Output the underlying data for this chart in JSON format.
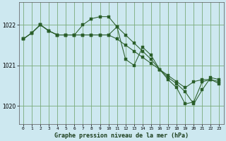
{
  "title": "Graphe pression niveau de la mer (hPa)",
  "bg_color": "#cde8f0",
  "grid_color": "#7aab7a",
  "line_color": "#2a5e2a",
  "xlim": [
    -0.5,
    23.5
  ],
  "ylim": [
    1019.55,
    1022.55
  ],
  "yticks": [
    1020,
    1021,
    1022
  ],
  "xticks": [
    0,
    1,
    2,
    3,
    4,
    5,
    6,
    7,
    8,
    9,
    10,
    11,
    12,
    13,
    14,
    15,
    16,
    17,
    18,
    19,
    20,
    21,
    22,
    23
  ],
  "series": [
    {
      "x": [
        0,
        1,
        2,
        3,
        4,
        5,
        6,
        7,
        8,
        9,
        10,
        11,
        12,
        13,
        14,
        15,
        16,
        17,
        18,
        19,
        20,
        21,
        22,
        23
      ],
      "y": [
        1021.65,
        1021.8,
        1022.0,
        1021.85,
        1021.75,
        1021.75,
        1021.75,
        1021.75,
        1021.75,
        1021.75,
        1021.75,
        1021.65,
        1021.5,
        1021.35,
        1021.2,
        1021.05,
        1020.9,
        1020.75,
        1020.6,
        1020.45,
        1020.6,
        1020.65,
        1020.65,
        1020.6
      ]
    },
    {
      "x": [
        0,
        1,
        2,
        3,
        4,
        5,
        6,
        7,
        8,
        9,
        10,
        11,
        12,
        13,
        14,
        15,
        16,
        17,
        18,
        19,
        20,
        21,
        22,
        23
      ],
      "y": [
        1021.65,
        1021.8,
        1022.0,
        1021.85,
        1021.75,
        1021.75,
        1021.75,
        1022.0,
        1022.15,
        1022.2,
        1022.2,
        1021.95,
        1021.15,
        1021.0,
        1021.45,
        1021.25,
        1020.9,
        1020.65,
        1020.45,
        1020.05,
        1020.1,
        1020.6,
        1020.65,
        1020.55
      ]
    },
    {
      "x": [
        0,
        1,
        2,
        3,
        4,
        5,
        6,
        7,
        8,
        9,
        10,
        11,
        12,
        13,
        14,
        15,
        16,
        17,
        18,
        19,
        20,
        21,
        22,
        23
      ],
      "y": [
        1021.65,
        1021.8,
        1022.0,
        1021.85,
        1021.75,
        1021.75,
        1021.75,
        1021.75,
        1021.75,
        1021.75,
        1021.75,
        1021.95,
        1021.75,
        1021.55,
        1021.35,
        1021.15,
        1020.9,
        1020.7,
        1020.55,
        1020.35,
        1020.05,
        1020.4,
        1020.7,
        1020.65
      ]
    }
  ]
}
